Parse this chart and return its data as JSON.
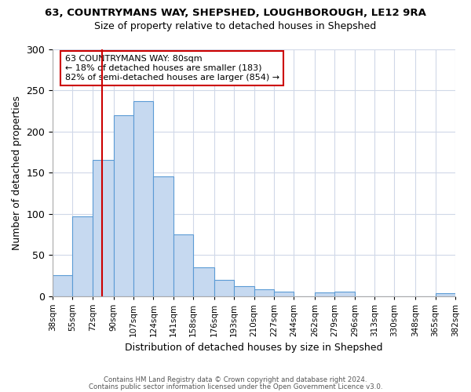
{
  "title_line1": "63, COUNTRYMANS WAY, SHEPSHED, LOUGHBOROUGH, LE12 9RA",
  "title_line2": "Size of property relative to detached houses in Shepshed",
  "xlabel": "Distribution of detached houses by size in Shepshed",
  "ylabel": "Number of detached properties",
  "bar_values": [
    25,
    97,
    165,
    220,
    237,
    145,
    75,
    35,
    20,
    12,
    8,
    5,
    0,
    4,
    5,
    0,
    0,
    0,
    0,
    3
  ],
  "bin_edges": [
    38,
    55,
    72,
    90,
    107,
    124,
    141,
    158,
    176,
    193,
    210,
    227,
    244,
    262,
    279,
    296,
    313,
    330,
    348,
    365,
    382
  ],
  "bar_labels": [
    "38sqm",
    "55sqm",
    "72sqm",
    "90sqm",
    "107sqm",
    "124sqm",
    "141sqm",
    "158sqm",
    "176sqm",
    "193sqm",
    "210sqm",
    "227sqm",
    "244sqm",
    "262sqm",
    "279sqm",
    "296sqm",
    "313sqm",
    "330sqm",
    "348sqm",
    "365sqm",
    "382sqm"
  ],
  "bar_color": "#c6d9f0",
  "bar_edge_color": "#5b9bd5",
  "property_line_x": 80,
  "property_line_color": "#cc0000",
  "ylim": [
    0,
    300
  ],
  "yticks": [
    0,
    50,
    100,
    150,
    200,
    250,
    300
  ],
  "annotation_title": "63 COUNTRYMANS WAY: 80sqm",
  "annotation_line1": "← 18% of detached houses are smaller (183)",
  "annotation_line2": "82% of semi-detached houses are larger (854) →",
  "annotation_box_color": "#ffffff",
  "annotation_box_edge_color": "#cc0000",
  "footer_line1": "Contains HM Land Registry data © Crown copyright and database right 2024.",
  "footer_line2": "Contains public sector information licensed under the Open Government Licence v3.0.",
  "background_color": "#ffffff",
  "grid_color": "#d0d8e8"
}
